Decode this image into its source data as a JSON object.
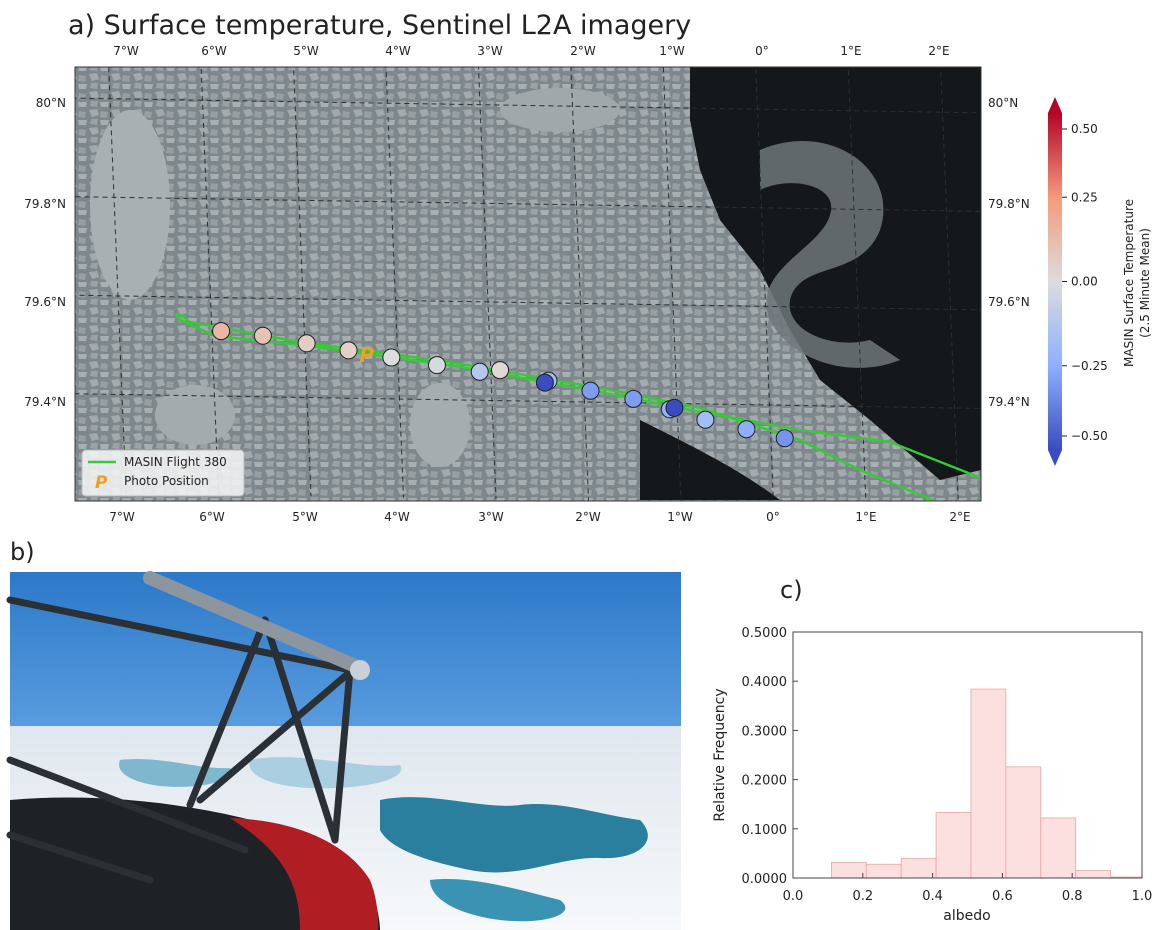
{
  "panel_a": {
    "title": "a) Surface temperature, Sentinel L2A imagery",
    "lon_ticks": [
      "7°W",
      "6°W",
      "5°W",
      "4°W",
      "3°W",
      "2°W",
      "1°W",
      "0°",
      "1°E",
      "2°E"
    ],
    "lat_ticks": [
      "80°N",
      "79.8°N",
      "79.6°N",
      "79.4°N"
    ],
    "legend": {
      "flight": "MASIN Flight 380",
      "photo": "Photo Position",
      "photo_marker": "P"
    },
    "colorbar": {
      "label_line1": "MASIN Surface Temperature",
      "label_line2": "(2.5 Minute Mean)",
      "ticks": [
        "0.50",
        "0.25",
        "0.00",
        "−0.25",
        "−0.50"
      ],
      "range": [
        -0.5,
        0.5
      ]
    },
    "colors": {
      "flight_track": "#33cc33",
      "photo_marker": "#f0a020",
      "sea": "#141618",
      "ice": "#8c9498"
    },
    "photo_position": {
      "lon": -4.35,
      "lat": 79.488
    },
    "track_points": [
      {
        "lon": -5.9,
        "lat": 79.532,
        "temp": 0.14
      },
      {
        "lon": -5.45,
        "lat": 79.524,
        "temp": 0.1
      },
      {
        "lon": -4.98,
        "lat": 79.51,
        "temp": 0.06
      },
      {
        "lon": -4.53,
        "lat": 79.497,
        "temp": 0.05
      },
      {
        "lon": -4.07,
        "lat": 79.484,
        "temp": 0.0
      },
      {
        "lon": -3.58,
        "lat": 79.47,
        "temp": -0.02
      },
      {
        "lon": -3.12,
        "lat": 79.458,
        "temp": -0.12
      },
      {
        "lon": -2.9,
        "lat": 79.462,
        "temp": 0.02
      },
      {
        "lon": -2.38,
        "lat": 79.442,
        "temp": -0.18
      },
      {
        "lon": -2.42,
        "lat": 79.438,
        "temp": -0.5
      },
      {
        "lon": -1.93,
        "lat": 79.423,
        "temp": -0.3
      },
      {
        "lon": -1.47,
        "lat": 79.408,
        "temp": -0.3
      },
      {
        "lon": -1.08,
        "lat": 79.388,
        "temp": -0.22
      },
      {
        "lon": -1.03,
        "lat": 79.391,
        "temp": -0.55
      },
      {
        "lon": -0.7,
        "lat": 79.368,
        "temp": -0.18
      },
      {
        "lon": -0.26,
        "lat": 79.35,
        "temp": -0.25
      },
      {
        "lon": 0.15,
        "lat": 79.333,
        "temp": -0.32
      }
    ]
  },
  "panel_b": {
    "label": "b)"
  },
  "chart_data": {
    "type": "bar",
    "label": "c)",
    "xlabel": "albedo",
    "ylabel": "Relative Frequency",
    "xlim": [
      0.0,
      1.0
    ],
    "ylim": [
      0.0,
      0.5
    ],
    "xticks": [
      "0.0",
      "0.2",
      "0.4",
      "0.6",
      "0.8",
      "1.0"
    ],
    "yticks": [
      "0.0000",
      "0.1000",
      "0.2000",
      "0.3000",
      "0.4000",
      "0.5000"
    ],
    "bin_edges": [
      0.11,
      0.21,
      0.31,
      0.41,
      0.51,
      0.61,
      0.71,
      0.81,
      0.91,
      1.0
    ],
    "values": [
      0.032,
      0.028,
      0.04,
      0.133,
      0.384,
      0.226,
      0.122,
      0.015,
      0.002
    ],
    "bar_color": "#fbe0df",
    "edge_color": "#e8a5a5"
  }
}
